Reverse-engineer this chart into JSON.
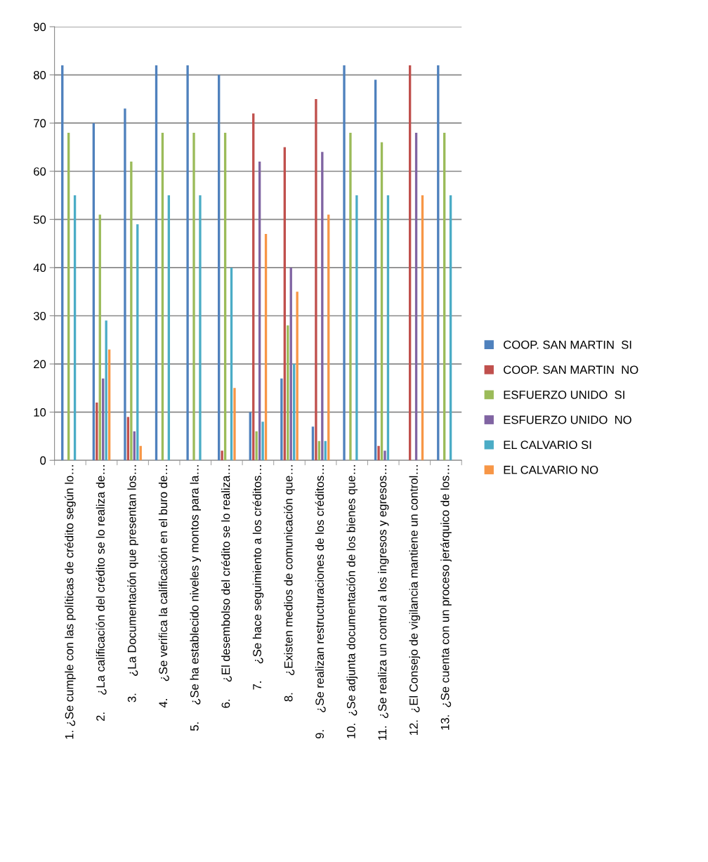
{
  "chart_data": {
    "type": "bar",
    "categories": [
      "1. ¿Se cumple con las políticas de crédito según lo…",
      "2.     ¿La calificación del crédito se lo realiza de…",
      "3.     ¿La Documentación que presentan los…",
      "4.     ¿Se verifica la calificación en el buro de…",
      "5.     ¿Se ha establecido niveles y montos para la…",
      "6.     ¿El desembolso del crédito se lo realiza…",
      "7.     ¿Se hace seguimiento a los créditos…",
      "8.     ¿Existen medios de comunicación que…",
      "9.     ¿Se realizan restructuraciones de los créditos…",
      "10.  ¿Se adjunta documentación de los bienes que…",
      "11.  ¿Se realiza un control a los ingresos y egresos…",
      "12.  ¿El Consejo de vigilancia mantiene un control…",
      "13.  ¿Se cuenta con un proceso jerárquico de los…"
    ],
    "series": [
      {
        "name": "COOP. SAN MARTIN  SI",
        "color": "#4f81bd",
        "values": [
          82,
          70,
          73,
          82,
          82,
          80,
          10,
          17,
          7,
          82,
          79,
          0,
          82
        ]
      },
      {
        "name": "COOP. SAN MARTIN  NO",
        "color": "#c0504d",
        "values": [
          0,
          12,
          9,
          0,
          0,
          2,
          72,
          65,
          75,
          0,
          3,
          82,
          0
        ]
      },
      {
        "name": "ESFUERZO UNIDO  SI",
        "color": "#9bbb59",
        "values": [
          68,
          51,
          62,
          68,
          68,
          68,
          6,
          28,
          4,
          68,
          66,
          0,
          68
        ]
      },
      {
        "name": "ESFUERZO UNIDO  NO",
        "color": "#8064a2",
        "values": [
          0,
          17,
          6,
          0,
          0,
          0,
          62,
          40,
          64,
          0,
          2,
          68,
          0
        ]
      },
      {
        "name": "EL CALVARIO SI",
        "color": "#4bacc6",
        "values": [
          55,
          29,
          49,
          55,
          55,
          40,
          8,
          20,
          4,
          55,
          55,
          0,
          55
        ]
      },
      {
        "name": "EL CALVARIO NO",
        "color": "#f79646",
        "values": [
          0,
          23,
          3,
          0,
          0,
          15,
          47,
          35,
          51,
          0,
          0,
          55,
          0
        ]
      }
    ],
    "ylim": [
      0,
      90
    ],
    "yticks": [
      0,
      10,
      20,
      30,
      40,
      50,
      60,
      70,
      80,
      90
    ],
    "grid": "y",
    "legend": "right"
  }
}
